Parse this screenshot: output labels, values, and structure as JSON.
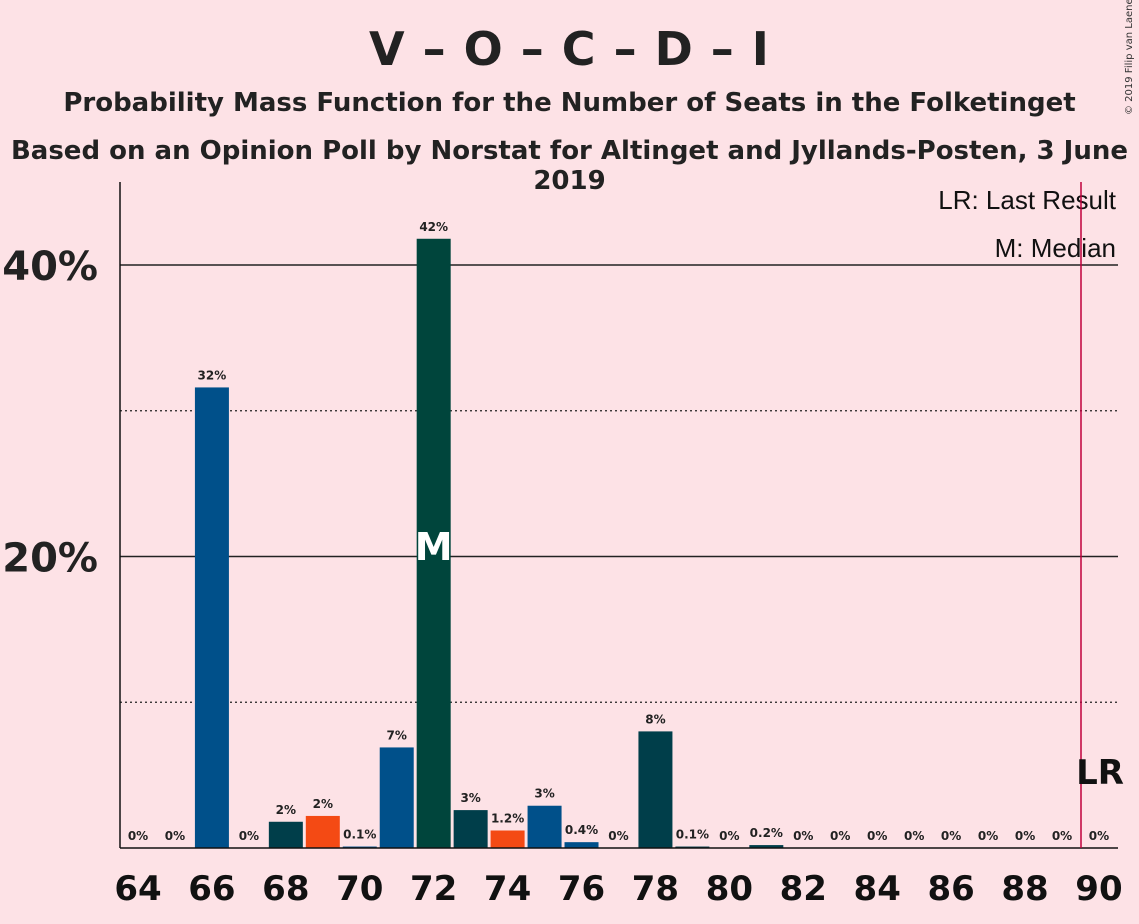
{
  "header": {
    "title": "V – O – C – D – I",
    "subtitle": "Probability Mass Function for the Number of Seats in the Folketinget",
    "subtitle2": "Based on an Opinion Poll by Norstat for Altinget and Jyllands-Posten, 3 June 2019",
    "copyright": "© 2019 Filip van Laenen"
  },
  "chart_data": {
    "type": "bar",
    "x": [
      64,
      65,
      66,
      67,
      68,
      69,
      70,
      71,
      72,
      73,
      74,
      75,
      76,
      77,
      78,
      79,
      80,
      81,
      82,
      83,
      84,
      85,
      86,
      87,
      88,
      89,
      90
    ],
    "values": [
      0,
      0,
      31.6,
      0,
      1.8,
      2.2,
      0.1,
      6.9,
      41.8,
      2.6,
      1.2,
      2.9,
      0.4,
      0,
      8.0,
      0.1,
      0,
      0.2,
      0,
      0,
      0,
      0,
      0,
      0,
      0,
      0,
      0
    ],
    "labels": [
      "0%",
      "0%",
      "32%",
      "0%",
      "2%",
      "2%",
      "0.1%",
      "7%",
      "42%",
      "3%",
      "1.2%",
      "3%",
      "0.4%",
      "0%",
      "8%",
      "0.1%",
      "0%",
      "0.2%",
      "0%",
      "0%",
      "0%",
      "0%",
      "0%",
      "0%",
      "0%",
      "0%",
      "0%"
    ],
    "bar_colors": [
      "#00508a",
      "#00508a",
      "#00508a",
      "#00508a",
      "#003e4a",
      "#f44a14",
      "#00508a",
      "#00508a",
      "#00453c",
      "#003e4a",
      "#f44a14",
      "#00508a",
      "#00508a",
      "#00508a",
      "#003e4a",
      "#003e4a",
      "#003e4a",
      "#003e4a",
      "#003e4a",
      "#003e4a",
      "#003e4a",
      "#003e4a",
      "#003e4a",
      "#003e4a",
      "#003e4a",
      "#003e4a",
      "#003e4a"
    ],
    "x_ticks": [
      64,
      66,
      68,
      70,
      72,
      74,
      76,
      78,
      80,
      82,
      84,
      86,
      88,
      90
    ],
    "y_ticks": [
      {
        "value": 20,
        "label": "20%"
      },
      {
        "value": 40,
        "label": "40%"
      }
    ],
    "ylim": [
      0,
      45
    ],
    "minor_gridlines": [
      10,
      30
    ],
    "median": {
      "x": 72,
      "label": "M"
    },
    "last_result": {
      "x": 89.5,
      "label": "LR",
      "color": "#c0003c"
    },
    "legend": {
      "position": "top-right",
      "items": [
        "LR: Last Result",
        "M: Median"
      ]
    }
  }
}
